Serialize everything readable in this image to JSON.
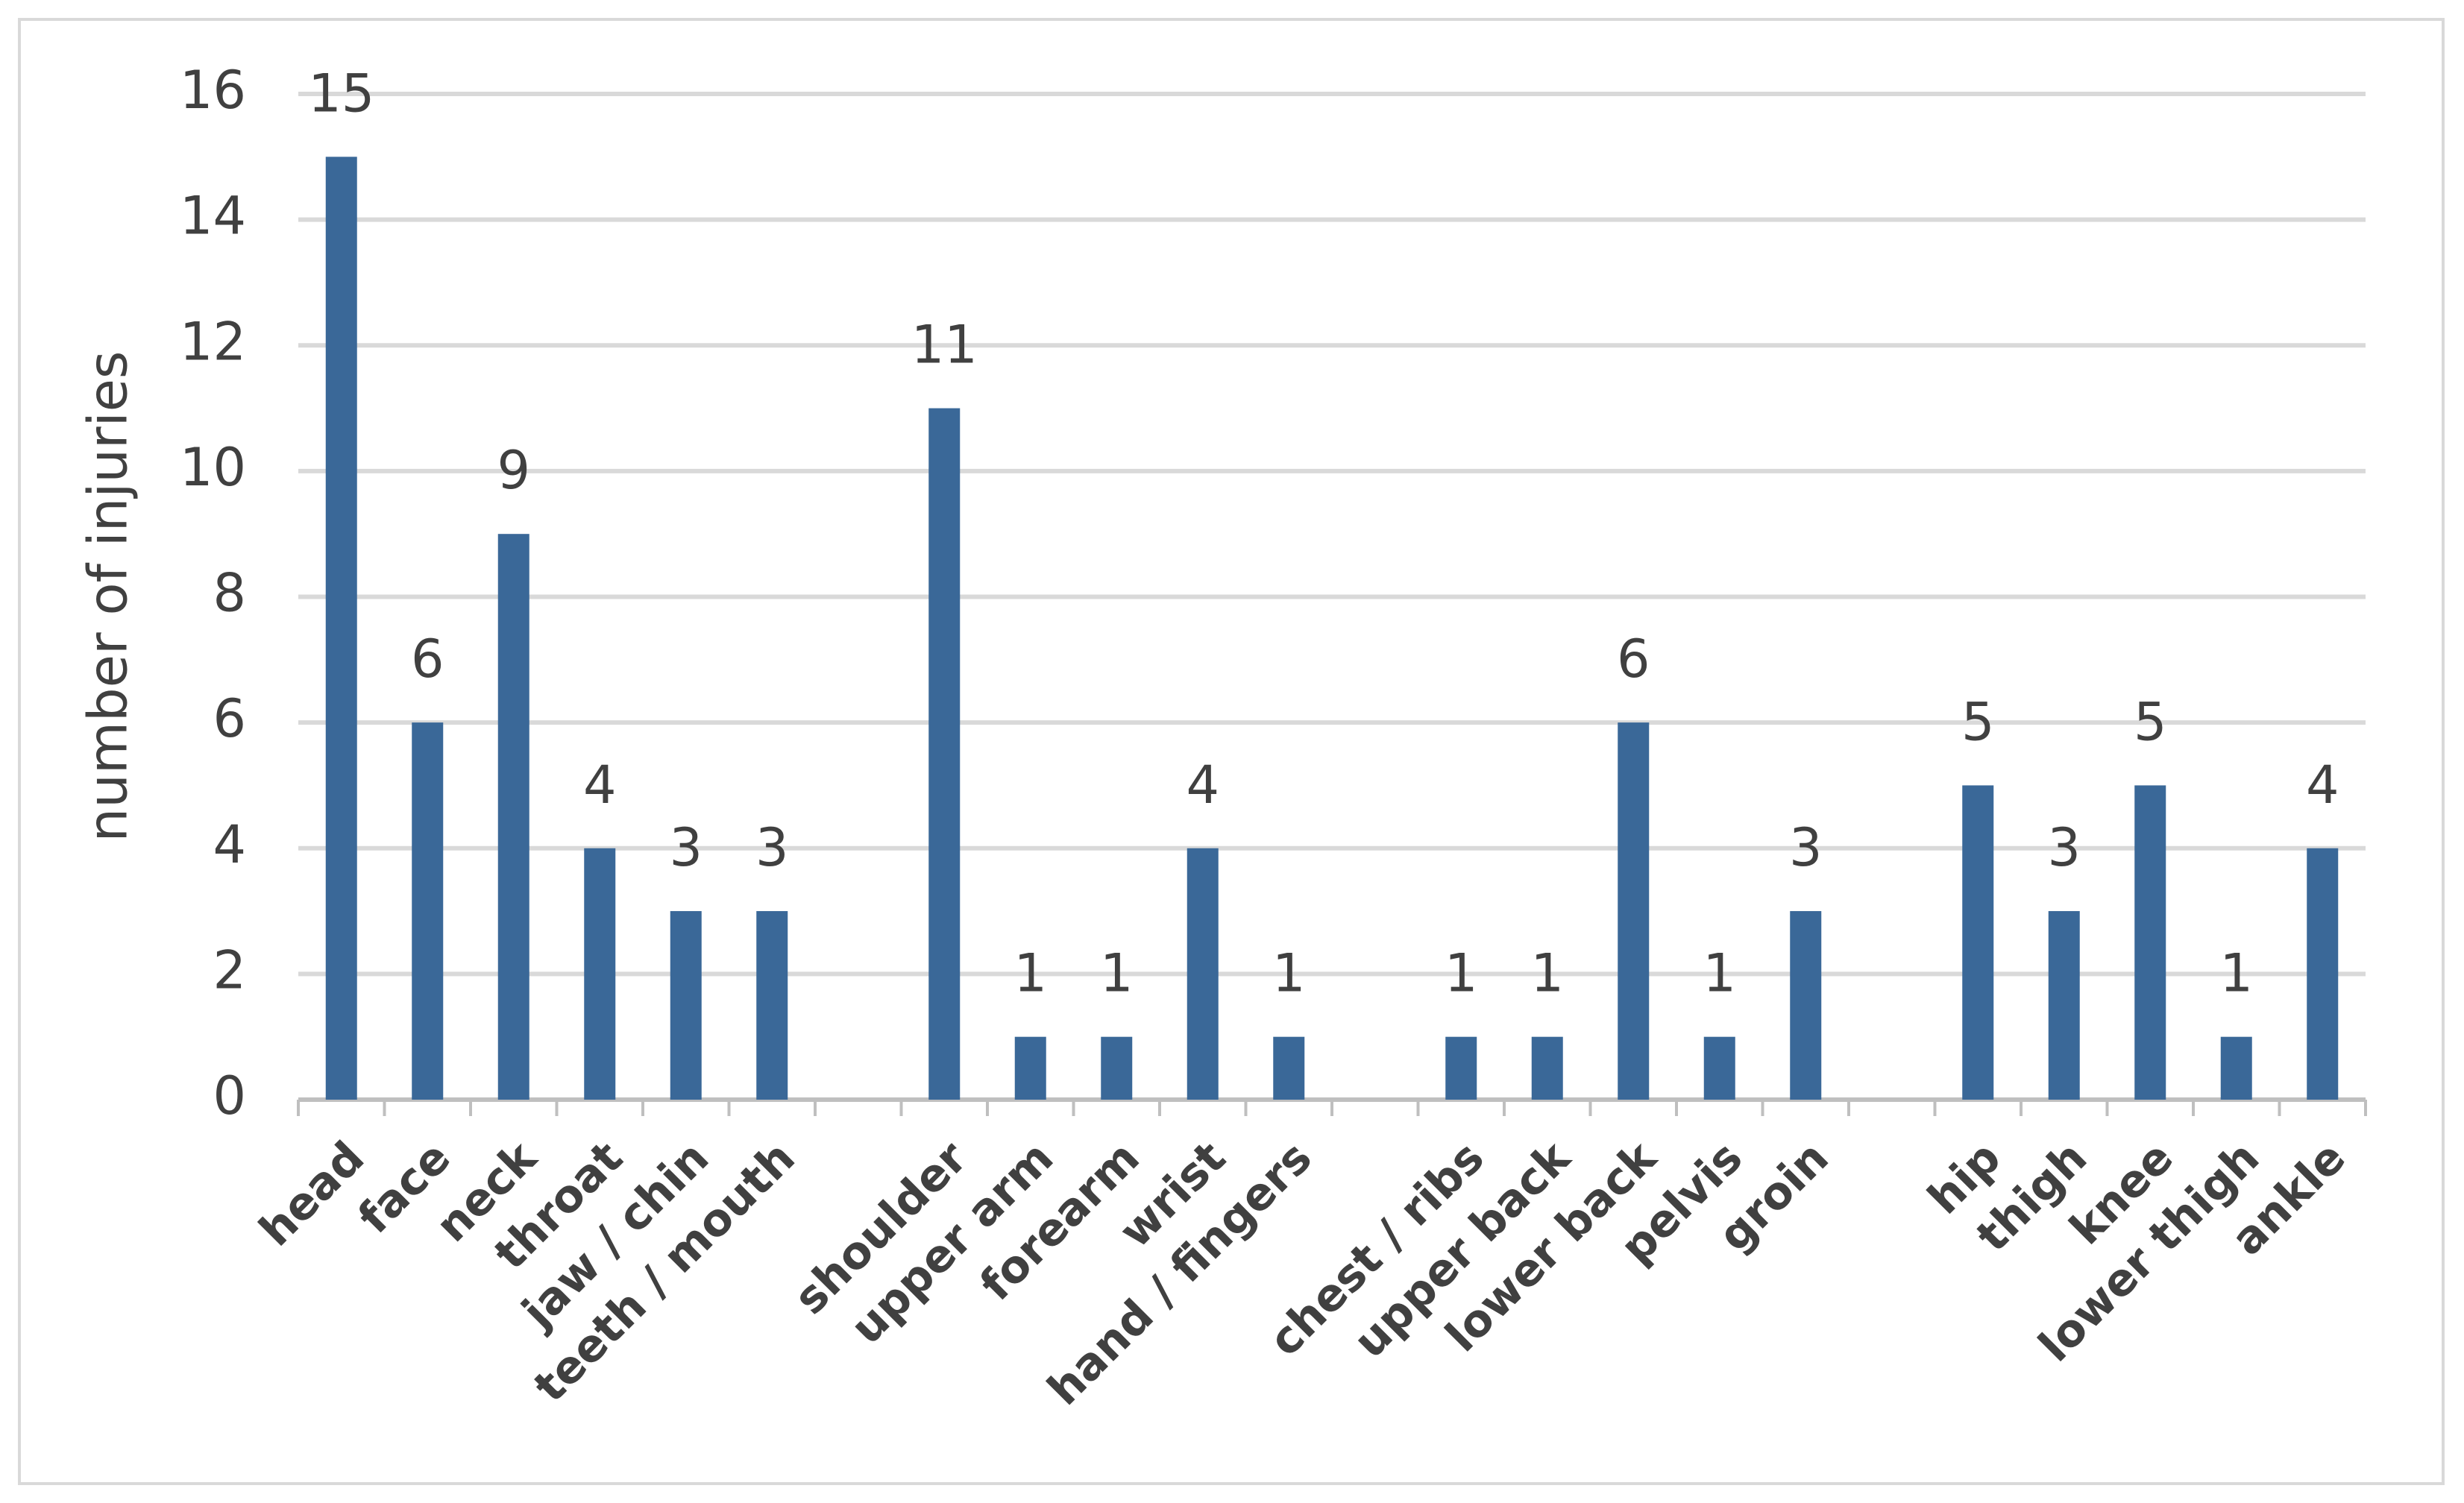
{
  "chart_data": {
    "type": "bar",
    "y_label": "number of injuries",
    "categories": [
      "head",
      "face",
      "neck",
      "throat",
      "jaw / chin",
      "teeth / mouth",
      null,
      "shoulder",
      "upper arm",
      "forearm",
      "wrist",
      "hand / fingers",
      null,
      "chest / ribs",
      "upper back",
      "lower back",
      "pelvis",
      "groin",
      null,
      "hip",
      "thigh",
      "knee",
      "lower thigh",
      "ankle"
    ],
    "values": [
      15,
      6,
      9,
      4,
      3,
      3,
      null,
      11,
      1,
      1,
      4,
      1,
      null,
      1,
      1,
      6,
      1,
      3,
      null,
      5,
      3,
      5,
      1,
      4
    ],
    "color": "#3a6898",
    "ylim": [
      0,
      16
    ],
    "yticks": [
      0,
      2,
      4,
      6,
      8,
      10,
      12,
      14,
      16
    ],
    "grid": true
  }
}
